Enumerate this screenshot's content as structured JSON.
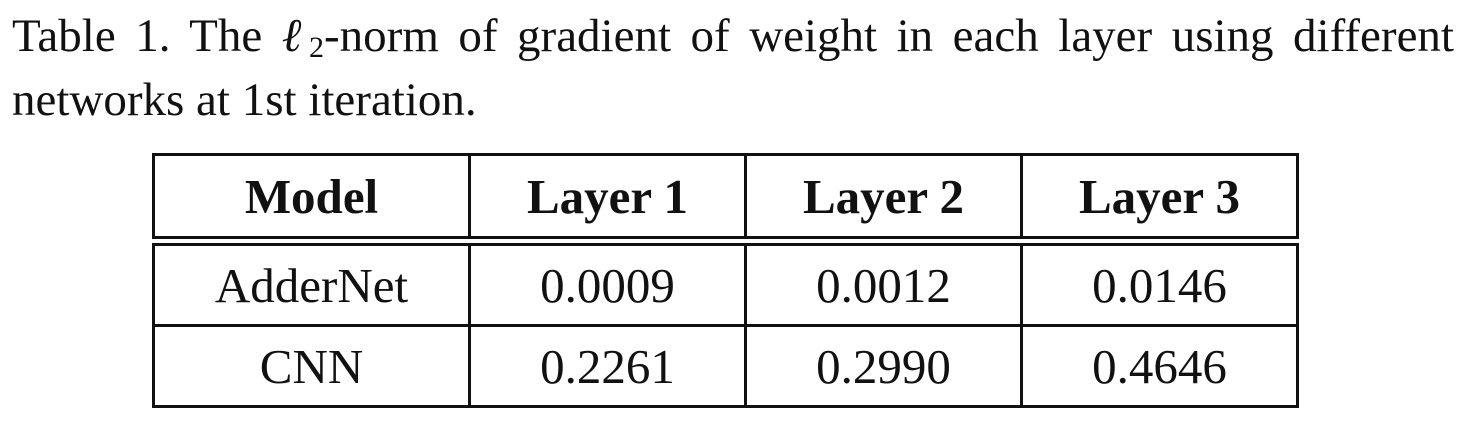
{
  "caption": {
    "label": "Table 1.",
    "text_before": " The ",
    "ell": "ℓ",
    "subscript": "2",
    "text_after": "-norm of gradient of weight in each layer using different networks at 1st iteration."
  },
  "table": {
    "headers": [
      "Model",
      "Layer 1",
      "Layer 2",
      "Layer 3"
    ],
    "rows": [
      [
        "AdderNet",
        "0.0009",
        "0.0012",
        "0.0146"
      ],
      [
        "CNN",
        "0.2261",
        "0.2990",
        "0.4646"
      ]
    ]
  }
}
